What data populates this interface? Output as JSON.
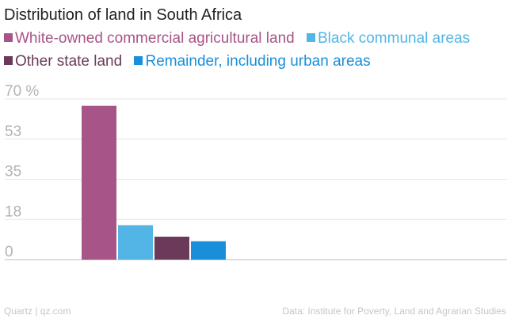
{
  "page": {
    "source_left": "Quartz | qz.com",
    "source_right": "Data: Institute for Poverty, Land and Agrarian Studies"
  },
  "chart_data": {
    "type": "bar",
    "title": "Distribution of land in South Africa",
    "xlabel": "",
    "ylabel": "",
    "ylim": [
      0,
      70
    ],
    "yticks": [
      "0",
      "18",
      "35",
      "53",
      "70 %"
    ],
    "ytick_values": [
      0,
      17.5,
      35,
      52.5,
      70
    ],
    "grid": true,
    "legend_position": "top-left",
    "series": [
      {
        "name": "White-owned commercial agricultural land",
        "value": 67,
        "color": "#a75488"
      },
      {
        "name": "Black communal areas",
        "value": 15,
        "color": "#53b5e6"
      },
      {
        "name": "Other state land",
        "value": 10,
        "color": "#6b3a5b"
      },
      {
        "name": "Remainder, including urban areas",
        "value": 8,
        "color": "#198fd9"
      }
    ]
  }
}
